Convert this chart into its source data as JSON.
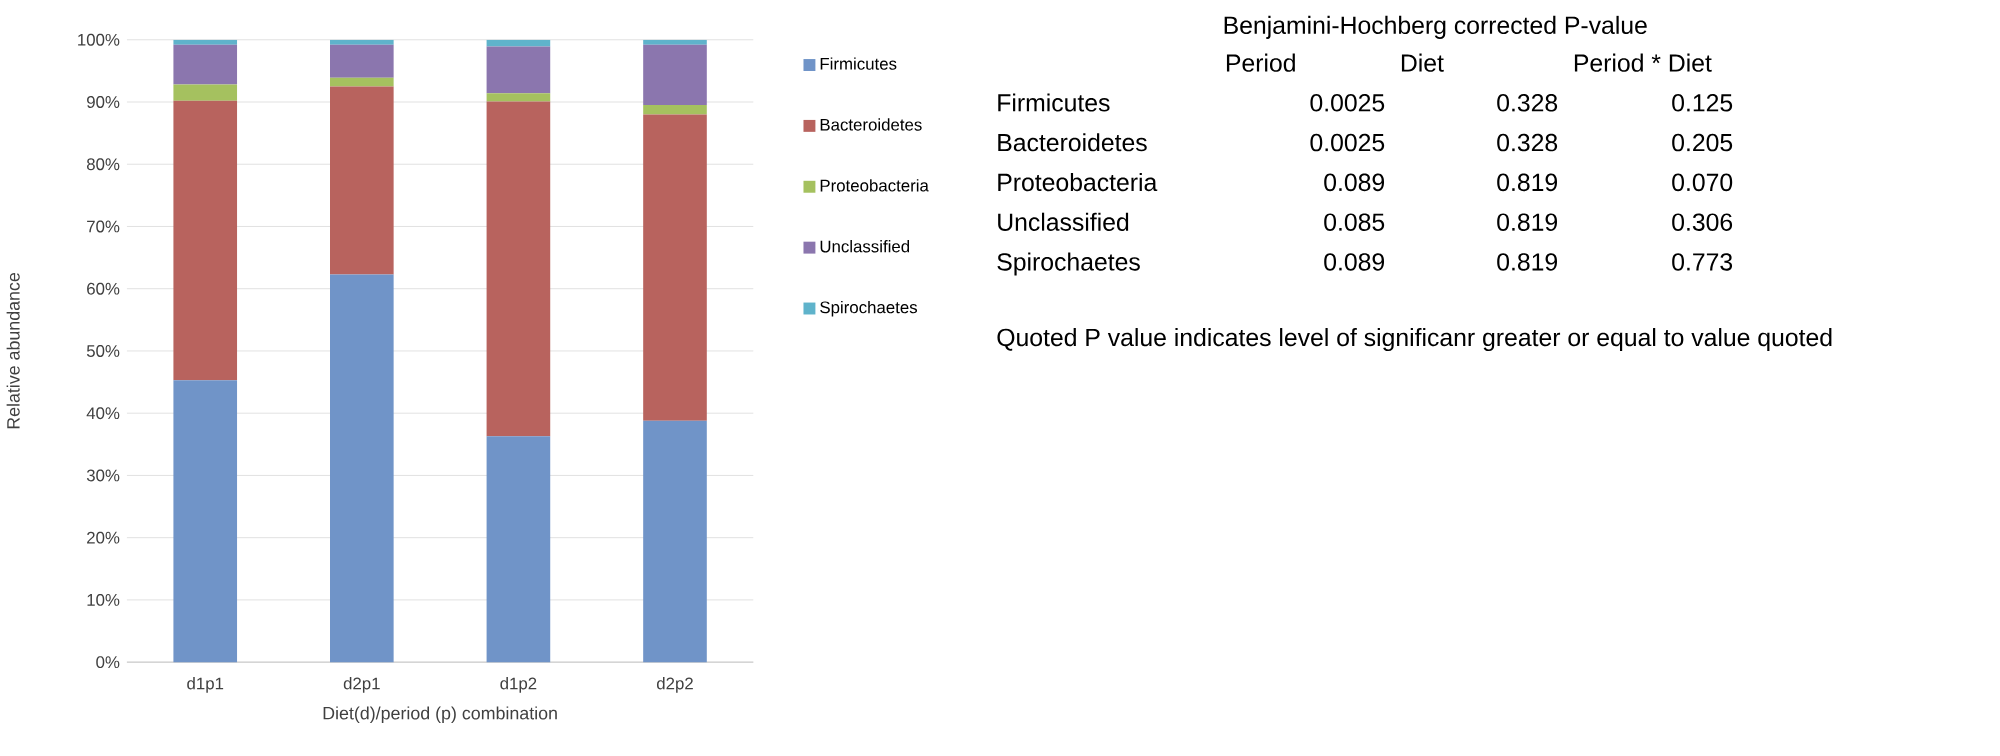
{
  "chart_data": [
    {
      "type": "bar",
      "stacked": true,
      "xlabel": "Diet(d)/period (p) combination",
      "ylabel": "Relative abundance",
      "categories": [
        "d1p1",
        "d2p1",
        "d1p2",
        "d2p2"
      ],
      "series": [
        {
          "name": "Firmicutes",
          "color": "#7094c8",
          "values": [
            45.3,
            62.3,
            36.3,
            38.8
          ]
        },
        {
          "name": "Bacteroidetes",
          "color": "#b8635e",
          "values": [
            44.9,
            30.2,
            53.8,
            49.2
          ]
        },
        {
          "name": "Proteobacteria",
          "color": "#a5c15f",
          "values": [
            2.6,
            1.4,
            1.3,
            1.5
          ]
        },
        {
          "name": "Unclassified",
          "color": "#8b76ae",
          "values": [
            6.4,
            5.3,
            7.5,
            9.7
          ]
        },
        {
          "name": "Spirochaetes",
          "color": "#5fb3cb",
          "values": [
            0.8,
            0.8,
            1.1,
            0.8
          ]
        }
      ],
      "ylim": [
        0,
        100
      ],
      "yticks": [
        {
          "value": 0,
          "label": "0%"
        },
        {
          "value": 10,
          "label": "10%"
        },
        {
          "value": 20,
          "label": "20%"
        },
        {
          "value": 30,
          "label": "30%"
        },
        {
          "value": 40,
          "label": "40%"
        },
        {
          "value": 50,
          "label": "50%"
        },
        {
          "value": 60,
          "label": "60%"
        },
        {
          "value": 70,
          "label": "70%"
        },
        {
          "value": 80,
          "label": "80%"
        },
        {
          "value": 90,
          "label": "90%"
        },
        {
          "value": 100,
          "label": "100%"
        }
      ],
      "grid": "y",
      "legend": "right"
    },
    {
      "type": "other",
      "title": "Benjamini-Hochberg corrected P-value",
      "categories": [
        "Period",
        "Diet",
        "Period * Diet"
      ],
      "y_categories": [
        "Firmicutes",
        "Bacteroidetes",
        "Proteobacteria",
        "Unclassified",
        "Spirochaetes"
      ],
      "cell_labels": [
        [
          "0.0025",
          "0.328",
          "0.125"
        ],
        [
          "0.0025",
          "0.328",
          "0.205"
        ],
        [
          "0.089",
          "0.819",
          "0.070"
        ],
        [
          "0.085",
          "0.819",
          "0.306"
        ],
        [
          "0.089",
          "0.819",
          "0.773"
        ]
      ],
      "annotations": [
        "Quoted P value indicates level of significanr greater or equal to value quoted"
      ]
    }
  ]
}
